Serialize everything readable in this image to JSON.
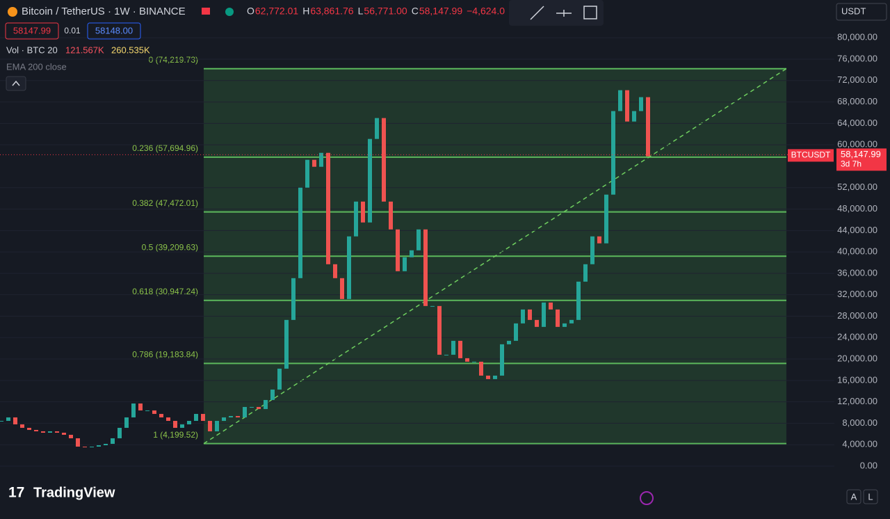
{
  "header": {
    "symbol": "Bitcoin / TetherUS · 1W · BINANCE",
    "ohlc": [
      {
        "key": "O",
        "value": "62,772.01"
      },
      {
        "key": "H",
        "value": "63,861.76"
      },
      {
        "key": "L",
        "value": "56,771.00"
      },
      {
        "key": "C",
        "value": "58,147.99"
      }
    ],
    "change": "−4,624.0",
    "bid": "58147.99",
    "spread": "0.01",
    "ask": "58148.00",
    "volume": {
      "label": "Vol · BTC 20",
      "v1": "121.567K",
      "v2": "260.535K"
    },
    "ema": "EMA 200 close"
  },
  "currency": "USDT",
  "price_tag": {
    "symbol": "BTCUSDT",
    "value": 58147.99,
    "label": "58,147.99",
    "countdown": "3d 7h"
  },
  "price_axis": {
    "ticks": [
      {
        "value": 80000,
        "label": "80,000.00"
      },
      {
        "value": 76000,
        "label": "76,000.00"
      },
      {
        "value": 72000,
        "label": "72,000.00"
      },
      {
        "value": 68000,
        "label": "68,000.00"
      },
      {
        "value": 64000,
        "label": "64,000.00"
      },
      {
        "value": 60000,
        "label": "60,000.00"
      },
      {
        "value": 52000,
        "label": "52,000.00"
      },
      {
        "value": 48000,
        "label": "48,000.00"
      },
      {
        "value": 44000,
        "label": "44,000.00"
      },
      {
        "value": 40000,
        "label": "40,000.00"
      },
      {
        "value": 36000,
        "label": "36,000.00"
      },
      {
        "value": 32000,
        "label": "32,000.00"
      },
      {
        "value": 28000,
        "label": "28,000.00"
      },
      {
        "value": 24000,
        "label": "24,000.00"
      },
      {
        "value": 20000,
        "label": "20,000.00"
      },
      {
        "value": 16000,
        "label": "16,000.00"
      },
      {
        "value": 12000,
        "label": "12,000.00"
      },
      {
        "value": 8000,
        "label": "8,000.00"
      },
      {
        "value": 4000,
        "label": "4,000.00"
      },
      {
        "value": 0,
        "label": "0.00"
      }
    ]
  },
  "fib_levels": [
    {
      "value": 74219.73,
      "label": "0 (74,219.73)"
    },
    {
      "value": 57694.96,
      "label": "0.236 (57,694.96)"
    },
    {
      "value": 47472.01,
      "label": "0.382 (47,472.01)"
    },
    {
      "value": 39209.63,
      "label": "0.5 (39,209.63)"
    },
    {
      "value": 30947.24,
      "label": "0.618 (30,947.24)"
    },
    {
      "value": 19183.84,
      "label": "0.786 (19,183.84)"
    },
    {
      "value": 4199.52,
      "label": "1 (4,199.52)"
    }
  ],
  "price_series": [
    8450,
    9100,
    7800,
    7150,
    6760,
    6500,
    6240,
    6500,
    6240,
    5850,
    5200,
    3640,
    3510,
    3640,
    3900,
    4160,
    5200,
    7150,
    9100,
    11700,
    10400,
    10400,
    9750,
    9100,
    8450,
    7150,
    7800,
    8450,
    9750,
    8450,
    6500,
    8450,
    9100,
    9360,
    9100,
    11050,
    11050,
    10660,
    12350,
    14300,
    18200,
    27300,
    35100,
    52000,
    57200,
    55900,
    58500,
    37700,
    35100,
    31200,
    42900,
    49400,
    45500,
    61100,
    65000,
    49400,
    44200,
    36400,
    39000,
    40300,
    44200,
    29900,
    29900,
    20800,
    20800,
    23400,
    20150,
    19500,
    19500,
    16900,
    16250,
    16900,
    22750,
    23400,
    26650,
    29250,
    27300,
    26000,
    30550,
    29250,
    26000,
    26650,
    27300,
    34450,
    37700,
    42900,
    41600,
    50700,
    66300,
    70200,
    64350,
    66300,
    68900,
    57850
  ],
  "logo": "TradingView",
  "buttons": [
    "A",
    "L"
  ]
}
